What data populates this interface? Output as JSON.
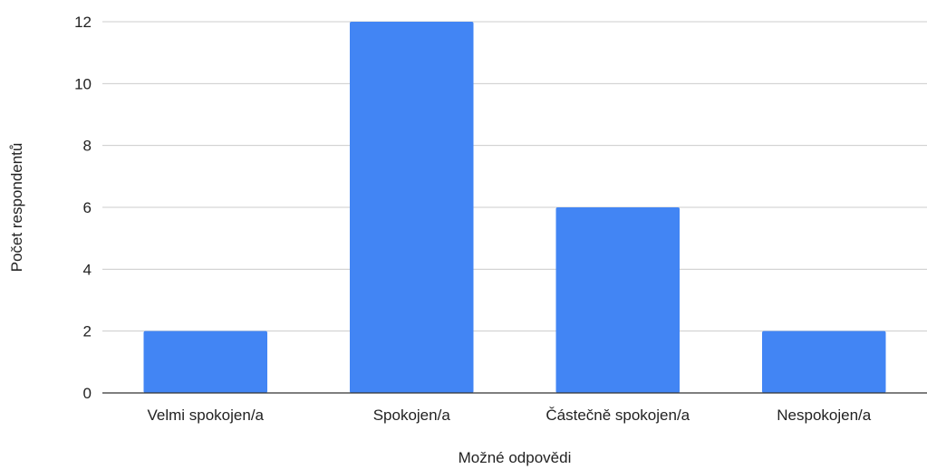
{
  "chart_data": {
    "type": "bar",
    "title": "",
    "xlabel": "Možné odpovědi",
    "ylabel": "Počet respondentů",
    "categories": [
      "Velmi spokojen/a",
      "Spokojen/a",
      "Částečně spokojen/a",
      "Nespokojen/a"
    ],
    "series": [
      {
        "values": [
          2,
          12,
          6,
          2
        ]
      }
    ],
    "yticks": [
      0,
      2,
      4,
      6,
      8,
      10,
      12
    ],
    "ylim": [
      0,
      12
    ],
    "grid": true,
    "legend": "none",
    "bar_color": "#4285f4"
  }
}
